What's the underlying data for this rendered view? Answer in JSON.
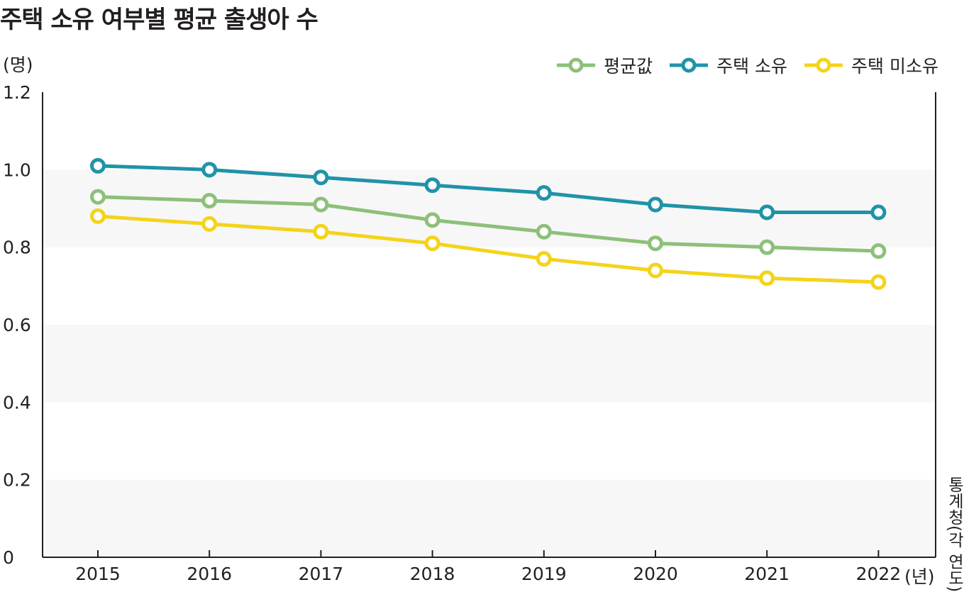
{
  "chart_data": {
    "type": "line",
    "title": "주택 소유 여부별 평균 출생아 수",
    "ylabel": "(명)",
    "xlabel": "(년)",
    "source": "통계청(각 연도)",
    "categories": [
      "2015",
      "2016",
      "2017",
      "2018",
      "2019",
      "2020",
      "2021",
      "2022"
    ],
    "ylim": [
      0,
      1.2
    ],
    "yticks": [
      "0",
      "0.2",
      "0.4",
      "0.6",
      "0.8",
      "1.0",
      "1.2"
    ],
    "grid": "alternating horizontal bands",
    "legend_position": "top-right",
    "series": [
      {
        "name": "평균값",
        "color": "#8dc07a",
        "values": [
          0.93,
          0.92,
          0.91,
          0.87,
          0.84,
          0.81,
          0.8,
          0.79
        ]
      },
      {
        "name": "주택 소유",
        "color": "#1f93a8",
        "values": [
          1.01,
          1.0,
          0.98,
          0.96,
          0.94,
          0.91,
          0.89,
          0.89
        ]
      },
      {
        "name": "주택 미소유",
        "color": "#f4d31a",
        "values": [
          0.88,
          0.86,
          0.84,
          0.81,
          0.77,
          0.74,
          0.72,
          0.71
        ]
      }
    ]
  }
}
